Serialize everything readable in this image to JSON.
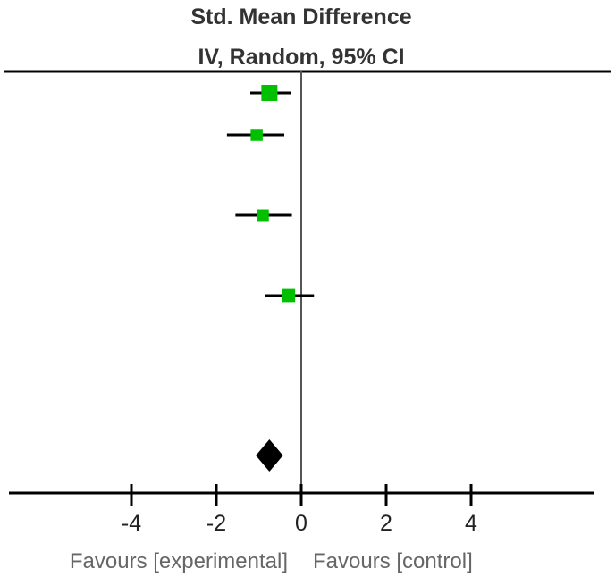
{
  "chart_data": {
    "type": "forest",
    "title": "Std. Mean Difference",
    "subtitle": "IV, Random, 95% CI",
    "xlim": [
      -7,
      7
    ],
    "ticks": [
      -4,
      -2,
      0,
      2,
      4
    ],
    "tick_labels": [
      "-4",
      "-2",
      "0",
      "2",
      "4"
    ],
    "xlabel_left": "Favours [experimental]",
    "xlabel_right": "Favours [control]",
    "studies": [
      {
        "estimate": -0.75,
        "ci": [
          -1.2,
          -0.25
        ],
        "weight": 1.0
      },
      {
        "estimate": -1.05,
        "ci": [
          -1.75,
          -0.4
        ],
        "weight": 0.75
      },
      {
        "estimate": -0.9,
        "ci": [
          -1.55,
          -0.22
        ],
        "weight": 0.72
      },
      {
        "estimate": -0.3,
        "ci": [
          -0.85,
          0.3
        ],
        "weight": 0.82
      }
    ],
    "pooled": {
      "estimate": -0.75,
      "ci": [
        -1.07,
        -0.43
      ]
    },
    "colors": {
      "square": "#00c000",
      "line": "#000000",
      "diamond": "#000000",
      "zero_line": "#555555"
    }
  }
}
